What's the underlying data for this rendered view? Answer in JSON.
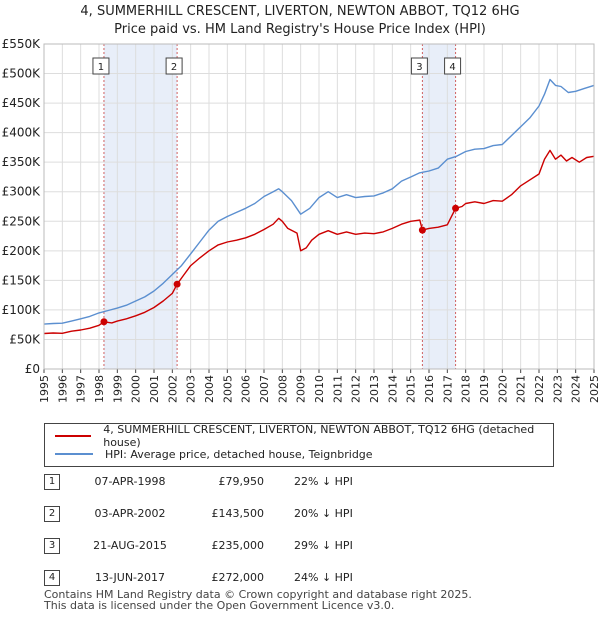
{
  "chart_data": {
    "type": "line",
    "title": "4, SUMMERHILL CRESCENT, LIVERTON, NEWTON ABBOT, TQ12 6HG",
    "subtitle": "Price paid vs. HM Land Registry's House Price Index (HPI)",
    "xlabel": "",
    "ylabel": "",
    "xlim": [
      1995,
      2025
    ],
    "ylim": [
      0,
      550000
    ],
    "x_ticks": [
      "1995",
      "1996",
      "1997",
      "1998",
      "1999",
      "2000",
      "2001",
      "2002",
      "2003",
      "2004",
      "2005",
      "2006",
      "2007",
      "2008",
      "2009",
      "2010",
      "2011",
      "2012",
      "2013",
      "2014",
      "2015",
      "2016",
      "2017",
      "2018",
      "2019",
      "2020",
      "2021",
      "2022",
      "2023",
      "2024",
      "2025"
    ],
    "y_ticks": [
      {
        "value": 0,
        "label": "£0"
      },
      {
        "value": 50000,
        "label": "£50K"
      },
      {
        "value": 100000,
        "label": "£100K"
      },
      {
        "value": 150000,
        "label": "£150K"
      },
      {
        "value": 200000,
        "label": "£200K"
      },
      {
        "value": 250000,
        "label": "£250K"
      },
      {
        "value": 300000,
        "label": "£300K"
      },
      {
        "value": 350000,
        "label": "£350K"
      },
      {
        "value": 400000,
        "label": "£400K"
      },
      {
        "value": 450000,
        "label": "£450K"
      },
      {
        "value": 500000,
        "label": "£500K"
      },
      {
        "value": 550000,
        "label": "£550K"
      }
    ],
    "grid": true,
    "series": [
      {
        "name": "4, SUMMERHILL CRESCENT, LIVERTON, NEWTON ABBOT, TQ12 6HG (detached house)",
        "color": "#cc0000",
        "points": [
          [
            1995.0,
            60000
          ],
          [
            1995.5,
            61000
          ],
          [
            1996.0,
            60500
          ],
          [
            1996.5,
            64000
          ],
          [
            1997.0,
            66000
          ],
          [
            1997.5,
            69000
          ],
          [
            1998.0,
            74000
          ],
          [
            1998.27,
            79950
          ],
          [
            1998.7,
            78000
          ],
          [
            1999.0,
            81000
          ],
          [
            1999.5,
            85000
          ],
          [
            2000.0,
            90000
          ],
          [
            2000.5,
            96000
          ],
          [
            2001.0,
            104000
          ],
          [
            2001.5,
            115000
          ],
          [
            2002.0,
            128000
          ],
          [
            2002.26,
            143500
          ],
          [
            2002.6,
            158000
          ],
          [
            2003.0,
            175000
          ],
          [
            2003.5,
            188000
          ],
          [
            2004.0,
            200000
          ],
          [
            2004.5,
            210000
          ],
          [
            2005.0,
            215000
          ],
          [
            2005.5,
            218000
          ],
          [
            2006.0,
            222000
          ],
          [
            2006.5,
            228000
          ],
          [
            2007.0,
            236000
          ],
          [
            2007.5,
            245000
          ],
          [
            2007.8,
            255000
          ],
          [
            2008.0,
            250000
          ],
          [
            2008.3,
            238000
          ],
          [
            2008.8,
            230000
          ],
          [
            2009.0,
            200000
          ],
          [
            2009.3,
            205000
          ],
          [
            2009.6,
            218000
          ],
          [
            2010.0,
            228000
          ],
          [
            2010.5,
            234000
          ],
          [
            2011.0,
            228000
          ],
          [
            2011.5,
            232000
          ],
          [
            2012.0,
            228000
          ],
          [
            2012.5,
            230000
          ],
          [
            2013.0,
            229000
          ],
          [
            2013.5,
            232000
          ],
          [
            2014.0,
            238000
          ],
          [
            2014.5,
            245000
          ],
          [
            2015.0,
            250000
          ],
          [
            2015.5,
            252000
          ],
          [
            2015.64,
            235000
          ],
          [
            2016.0,
            238000
          ],
          [
            2016.5,
            240000
          ],
          [
            2017.0,
            244000
          ],
          [
            2017.45,
            272000
          ],
          [
            2017.8,
            275000
          ],
          [
            2018.0,
            280000
          ],
          [
            2018.5,
            283000
          ],
          [
            2019.0,
            280000
          ],
          [
            2019.5,
            285000
          ],
          [
            2020.0,
            284000
          ],
          [
            2020.5,
            295000
          ],
          [
            2021.0,
            310000
          ],
          [
            2021.5,
            320000
          ],
          [
            2022.0,
            330000
          ],
          [
            2022.3,
            355000
          ],
          [
            2022.6,
            370000
          ],
          [
            2022.9,
            355000
          ],
          [
            2023.2,
            362000
          ],
          [
            2023.5,
            352000
          ],
          [
            2023.8,
            358000
          ],
          [
            2024.2,
            350000
          ],
          [
            2024.6,
            358000
          ],
          [
            2025.0,
            360000
          ]
        ]
      },
      {
        "name": "HPI: Average price, detached house, Teignbridge",
        "color": "#5b8fd0",
        "points": [
          [
            1995.0,
            76000
          ],
          [
            1995.5,
            77000
          ],
          [
            1996.0,
            77500
          ],
          [
            1996.5,
            81000
          ],
          [
            1997.0,
            85000
          ],
          [
            1997.5,
            89000
          ],
          [
            1998.0,
            95000
          ],
          [
            1998.5,
            99000
          ],
          [
            1999.0,
            103000
          ],
          [
            1999.5,
            108000
          ],
          [
            2000.0,
            115000
          ],
          [
            2000.5,
            122000
          ],
          [
            2001.0,
            132000
          ],
          [
            2001.5,
            145000
          ],
          [
            2002.0,
            160000
          ],
          [
            2002.5,
            175000
          ],
          [
            2003.0,
            195000
          ],
          [
            2003.5,
            215000
          ],
          [
            2004.0,
            235000
          ],
          [
            2004.5,
            250000
          ],
          [
            2005.0,
            258000
          ],
          [
            2005.5,
            265000
          ],
          [
            2006.0,
            272000
          ],
          [
            2006.5,
            280000
          ],
          [
            2007.0,
            292000
          ],
          [
            2007.5,
            300000
          ],
          [
            2007.8,
            305000
          ],
          [
            2008.0,
            300000
          ],
          [
            2008.5,
            285000
          ],
          [
            2009.0,
            262000
          ],
          [
            2009.5,
            272000
          ],
          [
            2010.0,
            290000
          ],
          [
            2010.5,
            300000
          ],
          [
            2011.0,
            290000
          ],
          [
            2011.5,
            295000
          ],
          [
            2012.0,
            290000
          ],
          [
            2012.5,
            292000
          ],
          [
            2013.0,
            293000
          ],
          [
            2013.5,
            298000
          ],
          [
            2014.0,
            305000
          ],
          [
            2014.5,
            318000
          ],
          [
            2015.0,
            325000
          ],
          [
            2015.5,
            332000
          ],
          [
            2016.0,
            335000
          ],
          [
            2016.5,
            340000
          ],
          [
            2017.0,
            355000
          ],
          [
            2017.5,
            360000
          ],
          [
            2018.0,
            368000
          ],
          [
            2018.5,
            372000
          ],
          [
            2019.0,
            373000
          ],
          [
            2019.5,
            378000
          ],
          [
            2020.0,
            380000
          ],
          [
            2020.5,
            395000
          ],
          [
            2021.0,
            410000
          ],
          [
            2021.5,
            425000
          ],
          [
            2022.0,
            445000
          ],
          [
            2022.3,
            465000
          ],
          [
            2022.6,
            490000
          ],
          [
            2022.9,
            480000
          ],
          [
            2023.2,
            478000
          ],
          [
            2023.6,
            468000
          ],
          [
            2024.0,
            470000
          ],
          [
            2024.5,
            475000
          ],
          [
            2025.0,
            480000
          ]
        ]
      }
    ],
    "sale_points": [
      {
        "label": "1",
        "x": 1998.27,
        "value": 79950
      },
      {
        "label": "2",
        "x": 2002.26,
        "value": 143500
      },
      {
        "label": "3",
        "x": 2015.64,
        "value": 235000
      },
      {
        "label": "4",
        "x": 2017.45,
        "value": 272000
      }
    ],
    "shaded_periods": [
      [
        1998.27,
        2002.26
      ],
      [
        2015.64,
        2017.45
      ]
    ]
  },
  "legend": {
    "items": [
      {
        "label": "4, SUMMERHILL CRESCENT, LIVERTON, NEWTON ABBOT, TQ12 6HG (detached house)",
        "color": "#cc0000"
      },
      {
        "label": "HPI: Average price, detached house, Teignbridge",
        "color": "#5b8fd0"
      }
    ]
  },
  "sales": [
    {
      "num": "1",
      "date": "07-APR-1998",
      "price": "£79,950",
      "hpi": "22% ↓ HPI"
    },
    {
      "num": "2",
      "date": "03-APR-2002",
      "price": "£143,500",
      "hpi": "20% ↓ HPI"
    },
    {
      "num": "3",
      "date": "21-AUG-2015",
      "price": "£235,000",
      "hpi": "29% ↓ HPI"
    },
    {
      "num": "4",
      "date": "13-JUN-2017",
      "price": "£272,000",
      "hpi": "24% ↓ HPI"
    }
  ],
  "footer": {
    "line1": "Contains HM Land Registry data © Crown copyright and database right 2025.",
    "line2": "This data is licensed under the Open Government Licence v3.0."
  }
}
